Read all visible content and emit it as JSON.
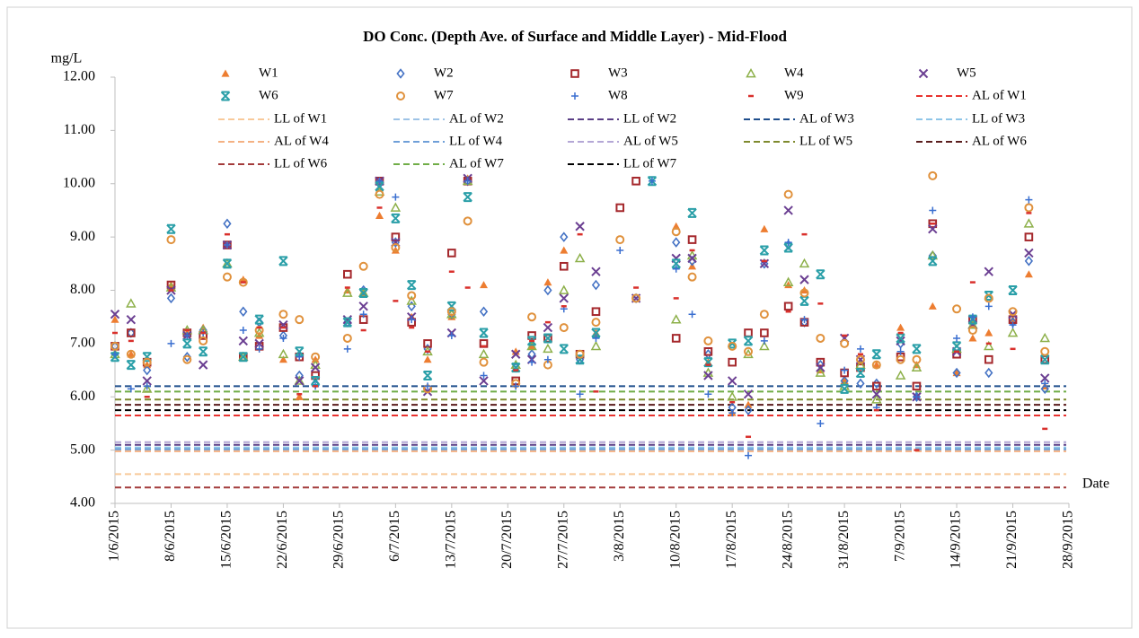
{
  "chart_data": {
    "type": "scatter",
    "title": "DO Conc. (Depth Ave. of Surface and Middle Layer) - Mid-Flood",
    "y_label": "mg/L",
    "x_label": "Date",
    "x": [
      "1/6/2015",
      "3/6/2015",
      "5/6/2015",
      "8/6/2015",
      "10/6/2015",
      "12/6/2015",
      "15/6/2015",
      "17/6/2015",
      "19/6/2015",
      "22/6/2015",
      "24/6/2015",
      "26/6/2015",
      "30/6/2015",
      "2/7/2015",
      "4/7/2015",
      "6/7/2015",
      "8/7/2015",
      "10/7/2015",
      "13/7/2015",
      "15/7/2015",
      "17/7/2015",
      "21/7/2015",
      "23/7/2015",
      "25/7/2015",
      "27/7/2015",
      "29/7/2015",
      "31/7/2015",
      "3/8/2015",
      "5/8/2015",
      "7/8/2015",
      "10/8/2015",
      "12/8/2015",
      "14/8/2015",
      "17/8/2015",
      "19/8/2015",
      "21/8/2015",
      "24/8/2015",
      "26/8/2015",
      "28/8/2015",
      "31/8/2015",
      "2/9/2015",
      "4/9/2015",
      "7/9/2015",
      "9/9/2015",
      "11/9/2015",
      "14/9/2015",
      "16/9/2015",
      "18/9/2015",
      "21/9/2015",
      "23/9/2015",
      "25/9/2015"
    ],
    "series": [
      {
        "name": "W1",
        "color": "#ed7d31",
        "marker": "triangle-filled",
        "values": [
          7.45,
          6.8,
          6.6,
          8.1,
          7.2,
          7.3,
          8.85,
          8.2,
          7.15,
          6.7,
          6.0,
          6.7,
          8.0,
          7.95,
          9.4,
          8.75,
          7.5,
          6.7,
          7.5,
          10.1,
          8.1,
          6.85,
          6.95,
          8.15,
          8.75,
          null,
          7.2,
          null,
          null,
          null,
          9.2,
          8.45,
          6.65,
          5.7,
          5.85,
          9.15,
          8.1,
          8.0,
          6.5,
          6.3,
          6.65,
          6.6,
          7.3,
          6.6,
          7.7,
          6.45,
          7.1,
          7.2,
          7.45,
          8.3,
          6.2
        ]
      },
      {
        "name": "W2",
        "color": "#4472c4",
        "marker": "diamond",
        "values": [
          6.95,
          7.2,
          6.5,
          7.85,
          6.75,
          7.25,
          9.25,
          7.6,
          7.4,
          7.15,
          6.4,
          6.25,
          7.4,
          8.0,
          10.0,
          8.9,
          7.7,
          6.9,
          7.55,
          10.05,
          7.6,
          6.55,
          6.8,
          8.0,
          9.0,
          6.7,
          8.1,
          null,
          7.85,
          null,
          8.9,
          8.55,
          6.8,
          5.8,
          5.75,
          8.5,
          8.85,
          7.4,
          6.6,
          6.3,
          6.25,
          6.25,
          7.0,
          6.0,
          8.65,
          6.45,
          7.4,
          6.45,
          7.4,
          8.55,
          6.15
        ]
      },
      {
        "name": "W3",
        "color": "#a5282c",
        "marker": "square",
        "values": [
          6.95,
          7.2,
          6.65,
          8.1,
          7.2,
          7.15,
          8.85,
          6.75,
          6.95,
          7.3,
          6.75,
          6.4,
          8.3,
          7.45,
          10.05,
          9.0,
          7.4,
          7.0,
          8.7,
          10.05,
          7.0,
          6.3,
          7.15,
          7.1,
          8.45,
          6.8,
          7.6,
          9.55,
          10.05,
          null,
          7.1,
          8.95,
          6.85,
          6.65,
          7.2,
          7.2,
          7.7,
          7.4,
          6.65,
          6.45,
          6.55,
          6.2,
          6.75,
          6.2,
          9.25,
          6.8,
          7.45,
          6.7,
          7.45,
          9.0,
          6.7
        ]
      },
      {
        "name": "W4",
        "color": "#8db04a",
        "marker": "triangle",
        "values": [
          6.8,
          7.75,
          6.15,
          8.05,
          7.25,
          7.25,
          8.5,
          6.75,
          7.2,
          6.8,
          6.3,
          6.6,
          7.95,
          7.95,
          9.85,
          9.55,
          7.8,
          6.85,
          7.55,
          10.05,
          6.8,
          6.6,
          6.95,
          6.9,
          8.0,
          8.6,
          6.95,
          null,
          null,
          null,
          7.45,
          8.65,
          6.45,
          6.0,
          6.8,
          6.95,
          8.15,
          8.5,
          6.45,
          6.2,
          6.6,
          5.95,
          6.4,
          6.55,
          8.65,
          6.9,
          7.35,
          6.95,
          7.2,
          9.25,
          7.1
        ]
      },
      {
        "name": "W5",
        "color": "#6b3f92",
        "marker": "cross",
        "values": [
          7.55,
          7.45,
          6.3,
          8.0,
          7.15,
          6.6,
          8.85,
          7.05,
          7.0,
          7.35,
          6.3,
          6.55,
          7.45,
          7.7,
          10.05,
          8.9,
          7.5,
          6.1,
          7.2,
          10.1,
          6.3,
          6.8,
          6.7,
          7.3,
          7.85,
          9.2,
          8.35,
          null,
          7.85,
          null,
          8.6,
          8.6,
          6.4,
          6.3,
          6.05,
          8.5,
          9.5,
          8.2,
          6.55,
          7.1,
          6.7,
          6.05,
          7.05,
          6.0,
          9.15,
          6.85,
          7.35,
          8.35,
          7.55,
          8.7,
          6.35
        ]
      },
      {
        "name": "W6",
        "color": "#2a9fa8",
        "marker": "star",
        "values": [
          6.75,
          6.6,
          6.75,
          9.15,
          7.0,
          6.85,
          8.5,
          6.75,
          7.45,
          8.55,
          6.85,
          6.3,
          7.4,
          7.95,
          9.95,
          9.35,
          8.1,
          6.4,
          7.7,
          9.75,
          7.2,
          6.55,
          7.05,
          7.1,
          6.9,
          6.7,
          7.2,
          null,
          null,
          10.05,
          8.5,
          9.45,
          6.65,
          7.0,
          7.05,
          8.75,
          8.8,
          7.8,
          8.3,
          6.15,
          6.45,
          6.8,
          7.1,
          6.9,
          8.55,
          6.95,
          7.45,
          7.9,
          8.0,
          null,
          6.7
        ]
      },
      {
        "name": "W7",
        "color": "#e0913c",
        "marker": "circle",
        "values": [
          6.95,
          6.8,
          6.65,
          8.95,
          6.7,
          7.05,
          8.25,
          8.15,
          7.25,
          7.55,
          7.45,
          6.75,
          7.1,
          8.45,
          9.8,
          8.8,
          7.9,
          6.15,
          7.6,
          9.3,
          6.65,
          6.25,
          7.5,
          6.6,
          7.3,
          6.8,
          7.4,
          8.95,
          7.85,
          null,
          9.1,
          8.25,
          7.05,
          6.95,
          6.85,
          7.55,
          9.8,
          7.95,
          7.1,
          7.0,
          6.7,
          6.6,
          6.7,
          6.7,
          10.15,
          7.65,
          7.25,
          7.85,
          7.6,
          9.55,
          6.85
        ]
      },
      {
        "name": "W8",
        "color": "#3a6fd0",
        "marker": "plus",
        "values": [
          6.8,
          6.15,
          6.2,
          7.0,
          7.15,
          7.2,
          8.85,
          7.25,
          6.9,
          7.1,
          6.75,
          6.2,
          6.9,
          7.55,
          10.05,
          9.75,
          7.45,
          6.2,
          7.15,
          10.05,
          6.4,
          6.2,
          6.65,
          6.7,
          7.65,
          6.05,
          7.1,
          8.75,
          null,
          10.05,
          8.4,
          7.55,
          6.05,
          5.7,
          4.9,
          7.05,
          8.9,
          7.45,
          5.5,
          6.5,
          6.9,
          5.8,
          6.85,
          6.0,
          9.5,
          7.1,
          7.5,
          7.7,
          7.35,
          9.7,
          6.25
        ]
      },
      {
        "name": "W9",
        "color": "#d9302c",
        "marker": "dash",
        "values": [
          7.2,
          7.05,
          6.0,
          8.0,
          7.25,
          7.2,
          9.05,
          8.15,
          7.3,
          7.3,
          6.05,
          6.2,
          8.05,
          7.25,
          9.55,
          7.8,
          7.3,
          6.85,
          8.35,
          8.05,
          6.95,
          6.5,
          7.05,
          7.4,
          7.7,
          9.05,
          6.1,
          null,
          8.05,
          null,
          7.85,
          8.75,
          6.6,
          5.9,
          5.25,
          8.55,
          7.6,
          9.05,
          7.75,
          7.15,
          6.8,
          5.75,
          7.2,
          5.0,
          9.25,
          6.85,
          8.15,
          7.0,
          6.9,
          9.45,
          5.4
        ]
      }
    ],
    "lines": [
      {
        "name": "AL of W1",
        "color": "#e8322e",
        "value": 5.65
      },
      {
        "name": "LL of W1",
        "color": "#f8c99a",
        "value": 4.55
      },
      {
        "name": "AL of W2",
        "color": "#9dc3e6",
        "value": 5.0
      },
      {
        "name": "LL of W2",
        "color": "#5b3f86",
        "value": 5.1
      },
      {
        "name": "AL of W3",
        "color": "#1f4e8c",
        "value": 6.2
      },
      {
        "name": "LL of W3",
        "color": "#8ec5e8",
        "value": 5.05
      },
      {
        "name": "AL of W4",
        "color": "#f4b183",
        "value": 4.98
      },
      {
        "name": "LL of W4",
        "color": "#6f9fd8",
        "value": 5.02
      },
      {
        "name": "AL of W5",
        "color": "#b4a7d6",
        "value": 5.15
      },
      {
        "name": "LL of W5",
        "color": "#7f8a2e",
        "value": 5.95
      },
      {
        "name": "AL of W6",
        "color": "#5a1d1d",
        "value": 5.85
      },
      {
        "name": "LL of W6",
        "color": "#a33b3b",
        "value": 4.3
      },
      {
        "name": "AL of W7",
        "color": "#70ad47",
        "value": 6.1
      },
      {
        "name": "LL of W7",
        "color": "#000000",
        "value": 5.75
      }
    ],
    "xlim": [
      "1/6/2015",
      "28/9/2015"
    ],
    "xticks": [
      "1/6/2015",
      "8/6/2015",
      "15/6/2015",
      "22/6/2015",
      "29/6/2015",
      "6/7/2015",
      "13/7/2015",
      "20/7/2015",
      "27/7/2015",
      "3/8/2015",
      "10/8/2015",
      "17/8/2015",
      "24/8/2015",
      "31/8/2015",
      "7/9/2015",
      "14/9/2015",
      "21/9/2015",
      "28/9/2015"
    ],
    "ylim": [
      4,
      12
    ],
    "yticks": [
      {
        "value": 4,
        "label": "4.00"
      },
      {
        "value": 5,
        "label": "5.00"
      },
      {
        "value": 6,
        "label": "6.00"
      },
      {
        "value": 7,
        "label": "7.00"
      },
      {
        "value": 8,
        "label": "8.00"
      },
      {
        "value": 9,
        "label": "9.00"
      },
      {
        "value": 10,
        "label": "10.00"
      },
      {
        "value": 11,
        "label": "11.00"
      },
      {
        "value": 12,
        "label": "12.00"
      }
    ],
    "grid": false
  }
}
